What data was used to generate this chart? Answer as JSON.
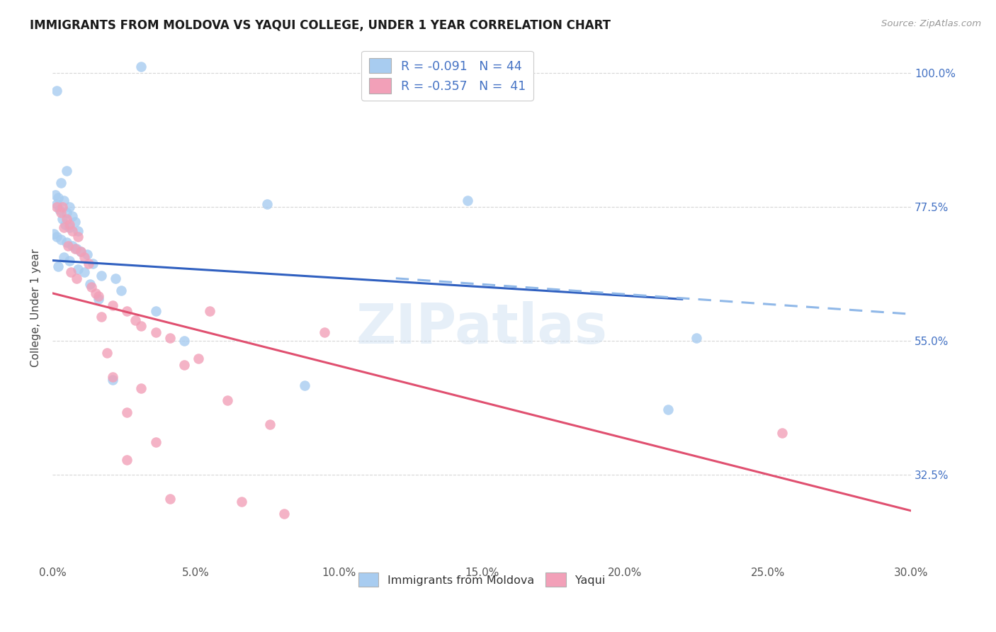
{
  "title": "IMMIGRANTS FROM MOLDOVA VS YAQUI COLLEGE, UNDER 1 YEAR CORRELATION CHART",
  "source_text": "Source: ZipAtlas.com",
  "xlabel": "",
  "ylabel": "College, Under 1 year",
  "legend_label_1": "Immigrants from Moldova",
  "legend_label_2": "Yaqui",
  "r1": "-0.091",
  "n1": "44",
  "r2": "-0.357",
  "n2": "41",
  "xmin": 0.0,
  "xmax": 30.0,
  "ymin": 18.0,
  "ymax": 103.0,
  "yticks": [
    32.5,
    55.0,
    77.5,
    100.0
  ],
  "xticks": [
    0.0,
    5.0,
    10.0,
    15.0,
    20.0,
    25.0,
    30.0
  ],
  "color_blue": "#A8CCF0",
  "color_pink": "#F2A0B8",
  "color_blue_line": "#3060C0",
  "color_pink_line": "#E05070",
  "color_blue_dashed": "#90B8E8",
  "color_right_axis": "#4472C4",
  "background_color": "#FFFFFF",
  "watermark": "ZIPatlas",
  "blue_line_x0": 0.0,
  "blue_line_x1": 22.0,
  "blue_line_y0": 68.5,
  "blue_line_y1": 62.0,
  "blue_dash_x0": 12.0,
  "blue_dash_x1": 30.0,
  "blue_dash_y0": 65.5,
  "blue_dash_y1": 59.5,
  "pink_line_x0": 0.0,
  "pink_line_x1": 30.0,
  "pink_line_y0": 63.0,
  "pink_line_y1": 26.5,
  "scatter_blue": [
    [
      0.15,
      97.0
    ],
    [
      0.5,
      83.5
    ],
    [
      0.3,
      81.5
    ],
    [
      0.1,
      79.5
    ],
    [
      0.2,
      79.0
    ],
    [
      0.4,
      78.5
    ],
    [
      0.15,
      78.0
    ],
    [
      0.6,
      77.5
    ],
    [
      0.25,
      77.0
    ],
    [
      0.5,
      76.5
    ],
    [
      0.7,
      76.0
    ],
    [
      0.35,
      75.5
    ],
    [
      0.8,
      75.0
    ],
    [
      0.45,
      74.5
    ],
    [
      0.6,
      74.0
    ],
    [
      0.9,
      73.5
    ],
    [
      0.05,
      73.0
    ],
    [
      0.15,
      72.5
    ],
    [
      0.3,
      72.0
    ],
    [
      0.5,
      71.5
    ],
    [
      0.7,
      71.0
    ],
    [
      0.85,
      70.5
    ],
    [
      1.0,
      70.0
    ],
    [
      1.2,
      69.5
    ],
    [
      0.4,
      69.0
    ],
    [
      0.6,
      68.5
    ],
    [
      1.4,
      68.0
    ],
    [
      0.2,
      67.5
    ],
    [
      0.9,
      67.0
    ],
    [
      1.1,
      66.5
    ],
    [
      1.7,
      66.0
    ],
    [
      2.2,
      65.5
    ],
    [
      1.3,
      64.5
    ],
    [
      2.4,
      63.5
    ],
    [
      1.6,
      62.0
    ],
    [
      3.6,
      60.0
    ],
    [
      7.5,
      78.0
    ],
    [
      4.6,
      55.0
    ],
    [
      14.5,
      78.5
    ],
    [
      2.1,
      48.5
    ],
    [
      8.8,
      47.5
    ],
    [
      22.5,
      55.5
    ],
    [
      3.1,
      101.0
    ],
    [
      21.5,
      43.5
    ]
  ],
  "scatter_pink": [
    [
      0.15,
      77.5
    ],
    [
      0.3,
      76.5
    ],
    [
      0.5,
      75.5
    ],
    [
      0.6,
      74.5
    ],
    [
      0.4,
      74.0
    ],
    [
      0.7,
      73.5
    ],
    [
      0.9,
      72.5
    ],
    [
      0.55,
      71.0
    ],
    [
      0.8,
      70.5
    ],
    [
      1.0,
      70.0
    ],
    [
      1.1,
      69.0
    ],
    [
      1.25,
      68.0
    ],
    [
      0.35,
      77.5
    ],
    [
      0.65,
      66.5
    ],
    [
      0.85,
      65.5
    ],
    [
      1.35,
      64.0
    ],
    [
      1.5,
      63.0
    ],
    [
      1.6,
      62.5
    ],
    [
      2.1,
      61.0
    ],
    [
      2.6,
      60.0
    ],
    [
      1.7,
      59.0
    ],
    [
      2.9,
      58.5
    ],
    [
      3.1,
      57.5
    ],
    [
      3.6,
      56.5
    ],
    [
      4.1,
      55.5
    ],
    [
      1.9,
      53.0
    ],
    [
      5.1,
      52.0
    ],
    [
      4.6,
      51.0
    ],
    [
      2.1,
      49.0
    ],
    [
      3.1,
      47.0
    ],
    [
      6.1,
      45.0
    ],
    [
      2.6,
      43.0
    ],
    [
      7.6,
      41.0
    ],
    [
      3.6,
      38.0
    ],
    [
      2.6,
      35.0
    ],
    [
      4.1,
      28.5
    ],
    [
      6.6,
      28.0
    ],
    [
      25.5,
      39.5
    ],
    [
      8.1,
      26.0
    ],
    [
      5.5,
      60.0
    ],
    [
      9.5,
      56.5
    ]
  ]
}
